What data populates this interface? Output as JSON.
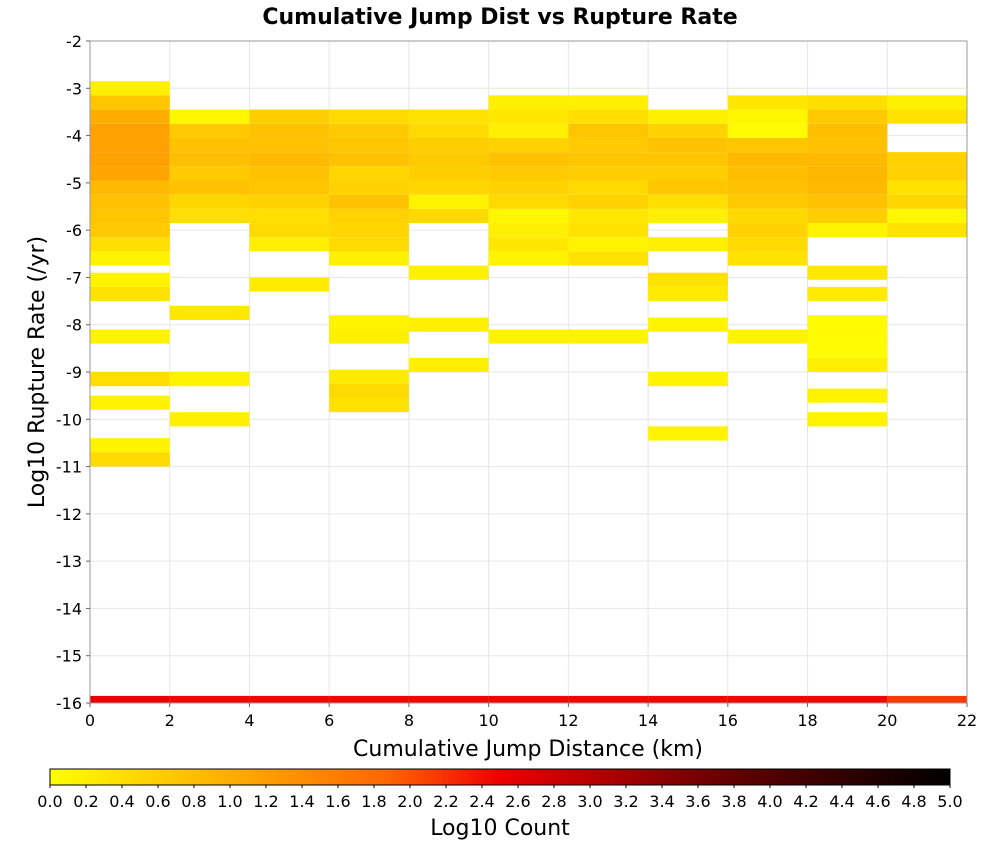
{
  "chart_data": {
    "type": "heatmap",
    "title": "Cumulative Jump Dist vs Rupture Rate",
    "xlabel": "Cumulative Jump Distance (km)",
    "ylabel": "Log10 Rupture Rate (/yr)",
    "colorbar_label": "Log10 Count",
    "xlim": [
      0,
      22
    ],
    "ylim": [
      -16,
      -2
    ],
    "x_ticks": [
      "0",
      "2",
      "4",
      "6",
      "8",
      "10",
      "12",
      "14",
      "16",
      "18",
      "20",
      "22"
    ],
    "y_ticks": [
      "-2",
      "-3",
      "-4",
      "-5",
      "-6",
      "-7",
      "-8",
      "-9",
      "-10",
      "-11",
      "-12",
      "-13",
      "-14",
      "-15",
      "-16"
    ],
    "colorbar_ticks": [
      "0.0",
      "0.2",
      "0.4",
      "0.6",
      "0.8",
      "1.0",
      "1.2",
      "1.4",
      "1.6",
      "1.8",
      "2.0",
      "2.2",
      "2.4",
      "2.6",
      "2.8",
      "3.0",
      "3.2",
      "3.4",
      "3.6",
      "3.8",
      "4.0",
      "4.2",
      "4.4",
      "4.6",
      "4.8",
      "5.0"
    ],
    "colorbar_range": [
      0,
      5
    ],
    "colormap": [
      "#ffff00",
      "#ffcc00",
      "#ff9900",
      "#ff6600",
      "#ee0000",
      "#aa0000",
      "#660000",
      "#330000",
      "#000000"
    ],
    "x_bin_width": 2,
    "y_bin_width": 0.3,
    "columns": [
      {
        "x": 1,
        "cells": [
          [
            -16,
            2.55
          ],
          [
            -10.85,
            0.45
          ],
          [
            -10.55,
            0.15
          ],
          [
            -9.65,
            0.15
          ],
          [
            -9.15,
            0.4
          ],
          [
            -8.25,
            0.15
          ],
          [
            -7.35,
            0.35
          ],
          [
            -7.05,
            0.15
          ],
          [
            -6.6,
            0.15
          ],
          [
            -6.3,
            0.4
          ],
          [
            -6.0,
            0.65
          ],
          [
            -5.7,
            0.7
          ],
          [
            -5.4,
            0.75
          ],
          [
            -5.1,
            0.85
          ],
          [
            -4.8,
            1.1
          ],
          [
            -4.5,
            1.15
          ],
          [
            -4.2,
            1.15
          ],
          [
            -3.9,
            1.15
          ],
          [
            -3.6,
            1.0
          ],
          [
            -3.3,
            0.7
          ],
          [
            -3.0,
            0.2
          ]
        ]
      },
      {
        "x": 3,
        "cells": [
          [
            -16,
            2.45
          ],
          [
            -10.0,
            0.2
          ],
          [
            -9.15,
            0.15
          ],
          [
            -7.75,
            0.3
          ],
          [
            -5.7,
            0.4
          ],
          [
            -5.4,
            0.5
          ],
          [
            -5.1,
            0.75
          ],
          [
            -4.8,
            0.65
          ],
          [
            -4.5,
            0.8
          ],
          [
            -4.2,
            0.75
          ],
          [
            -3.9,
            0.65
          ],
          [
            -3.6,
            0.1
          ]
        ]
      },
      {
        "x": 5,
        "cells": [
          [
            -16,
            2.45
          ],
          [
            -7.15,
            0.25
          ],
          [
            -6.3,
            0.2
          ],
          [
            -6.0,
            0.45
          ],
          [
            -5.7,
            0.4
          ],
          [
            -5.4,
            0.55
          ],
          [
            -5.1,
            0.7
          ],
          [
            -4.8,
            0.75
          ],
          [
            -4.5,
            0.85
          ],
          [
            -4.2,
            0.75
          ],
          [
            -3.9,
            0.75
          ],
          [
            -3.6,
            0.6
          ]
        ]
      },
      {
        "x": 7,
        "cells": [
          [
            -16,
            2.45
          ],
          [
            -9.7,
            0.35
          ],
          [
            -9.4,
            0.45
          ],
          [
            -9.1,
            0.25
          ],
          [
            -8.25,
            0.2
          ],
          [
            -7.95,
            0.15
          ],
          [
            -6.6,
            0.2
          ],
          [
            -6.3,
            0.45
          ],
          [
            -6.0,
            0.5
          ],
          [
            -5.7,
            0.55
          ],
          [
            -5.4,
            0.75
          ],
          [
            -5.1,
            0.55
          ],
          [
            -4.8,
            0.5
          ],
          [
            -4.5,
            0.75
          ],
          [
            -4.2,
            0.7
          ],
          [
            -3.9,
            0.65
          ],
          [
            -3.6,
            0.45
          ]
        ]
      },
      {
        "x": 9,
        "cells": [
          [
            -16,
            2.45
          ],
          [
            -8.85,
            0.2
          ],
          [
            -8.0,
            0.2
          ],
          [
            -6.9,
            0.2
          ],
          [
            -5.7,
            0.45
          ],
          [
            -5.4,
            0.15
          ],
          [
            -5.1,
            0.5
          ],
          [
            -4.8,
            0.6
          ],
          [
            -4.5,
            0.65
          ],
          [
            -4.2,
            0.6
          ],
          [
            -3.9,
            0.45
          ],
          [
            -3.6,
            0.35
          ]
        ]
      },
      {
        "x": 11,
        "cells": [
          [
            -16,
            2.45
          ],
          [
            -8.25,
            0.15
          ],
          [
            -6.6,
            0.15
          ],
          [
            -6.3,
            0.3
          ],
          [
            -6.0,
            0.2
          ],
          [
            -5.7,
            0.1
          ],
          [
            -5.4,
            0.45
          ],
          [
            -5.1,
            0.55
          ],
          [
            -4.8,
            0.65
          ],
          [
            -4.5,
            0.75
          ],
          [
            -4.2,
            0.55
          ],
          [
            -3.9,
            0.2
          ],
          [
            -3.6,
            0.3
          ],
          [
            -3.3,
            0.2
          ]
        ]
      },
      {
        "x": 13,
        "cells": [
          [
            -16,
            2.45
          ],
          [
            -8.25,
            0.15
          ],
          [
            -6.6,
            0.35
          ],
          [
            -6.3,
            0.15
          ],
          [
            -6.0,
            0.35
          ],
          [
            -5.7,
            0.3
          ],
          [
            -5.4,
            0.55
          ],
          [
            -5.1,
            0.45
          ],
          [
            -4.8,
            0.6
          ],
          [
            -4.5,
            0.7
          ],
          [
            -4.2,
            0.65
          ],
          [
            -3.9,
            0.7
          ],
          [
            -3.6,
            0.4
          ],
          [
            -3.3,
            0.2
          ]
        ]
      },
      {
        "x": 15,
        "cells": [
          [
            -16,
            2.45
          ],
          [
            -10.3,
            0.15
          ],
          [
            -9.15,
            0.15
          ],
          [
            -8.0,
            0.15
          ],
          [
            -7.35,
            0.25
          ],
          [
            -7.05,
            0.35
          ],
          [
            -6.3,
            0.2
          ],
          [
            -5.7,
            0.2
          ],
          [
            -5.4,
            0.4
          ],
          [
            -5.1,
            0.7
          ],
          [
            -4.8,
            0.6
          ],
          [
            -4.5,
            0.7
          ],
          [
            -4.2,
            0.75
          ],
          [
            -3.9,
            0.55
          ],
          [
            -3.6,
            0.2
          ]
        ]
      },
      {
        "x": 17,
        "cells": [
          [
            -16,
            2.45
          ],
          [
            -8.25,
            0.15
          ],
          [
            -6.6,
            0.35
          ],
          [
            -6.3,
            0.45
          ],
          [
            -6.0,
            0.55
          ],
          [
            -5.7,
            0.45
          ],
          [
            -5.4,
            0.65
          ],
          [
            -5.1,
            0.75
          ],
          [
            -4.8,
            0.8
          ],
          [
            -4.5,
            0.85
          ],
          [
            -4.2,
            0.7
          ],
          [
            -3.9,
            0.05
          ],
          [
            -3.6,
            0.1
          ],
          [
            -3.3,
            0.3
          ]
        ]
      },
      {
        "x": 19,
        "cells": [
          [
            -16,
            2.45
          ],
          [
            -10.0,
            0.15
          ],
          [
            -9.5,
            0.15
          ],
          [
            -8.85,
            0.2
          ],
          [
            -8.55,
            0.05
          ],
          [
            -8.25,
            0.05
          ],
          [
            -7.95,
            0.05
          ],
          [
            -7.35,
            0.25
          ],
          [
            -6.9,
            0.3
          ],
          [
            -6.0,
            0.15
          ],
          [
            -5.7,
            0.6
          ],
          [
            -5.4,
            0.75
          ],
          [
            -5.1,
            0.85
          ],
          [
            -4.8,
            0.9
          ],
          [
            -4.5,
            0.85
          ],
          [
            -4.2,
            0.75
          ],
          [
            -3.9,
            0.8
          ],
          [
            -3.6,
            0.65
          ],
          [
            -3.3,
            0.4
          ]
        ]
      },
      {
        "x": 21,
        "cells": [
          [
            -16,
            2.15
          ],
          [
            -6.0,
            0.35
          ],
          [
            -5.7,
            0.1
          ],
          [
            -5.4,
            0.5
          ],
          [
            -5.1,
            0.35
          ],
          [
            -4.8,
            0.55
          ],
          [
            -4.5,
            0.55
          ],
          [
            -3.6,
            0.35
          ],
          [
            -3.3,
            0.2
          ]
        ]
      }
    ]
  }
}
